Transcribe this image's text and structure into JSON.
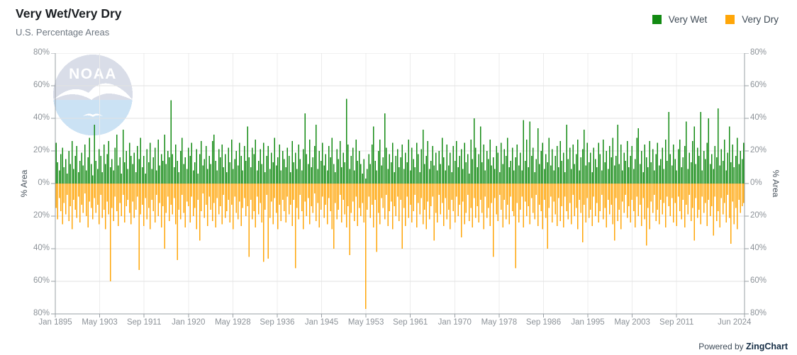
{
  "header": {
    "title": "Very Wet/Very Dry",
    "subtitle": "U.S. Percentage Areas"
  },
  "legend": {
    "items": [
      {
        "label": "Very Wet",
        "color": "#128a12"
      },
      {
        "label": "Very Dry",
        "color": "#ffa608"
      }
    ]
  },
  "watermark": {
    "text": "NOAA"
  },
  "footer": {
    "powered_by": "Powered by ",
    "brand": "ZingChart"
  },
  "chart_data": {
    "type": "bar",
    "title": "Very Wet/Very Dry",
    "subtitle": "U.S. Percentage Areas",
    "ylabel_left": "% Area",
    "ylabel_right": "% Area",
    "ylim": [
      -80,
      80
    ],
    "y_tick_step": 20,
    "y_tick_labels": [
      "80%",
      "60%",
      "40%",
      "20%",
      "0%",
      "20%",
      "40%",
      "60%",
      "80%"
    ],
    "x_tick_labels": [
      "Jan 1895",
      "May 1903",
      "Sep 1911",
      "Jan 1920",
      "May 1928",
      "Sep 1936",
      "Jan 1945",
      "May 1953",
      "Sep 1961",
      "Jan 1970",
      "May 1978",
      "Sep 1986",
      "Jan 1995",
      "May 2003",
      "Sep 2011",
      "Jun 2024"
    ],
    "x_tick_month_index": [
      0,
      100,
      200,
      300,
      400,
      500,
      600,
      700,
      800,
      900,
      1000,
      1100,
      1200,
      1300,
      1400,
      1553
    ],
    "months_total": 1554,
    "grid": true,
    "legend_position": "top-right",
    "axis_color": "#9aa0a6",
    "grid_color": "#e2e2e2",
    "series": [
      {
        "name": "Very Wet",
        "direction": "up",
        "color": "#128a12",
        "values": [
          25,
          13,
          8,
          18,
          22,
          10,
          15,
          6,
          20,
          12,
          26,
          9,
          17,
          23,
          7,
          14,
          19,
          11,
          24,
          8,
          16,
          28,
          12,
          5,
          36,
          14,
          9,
          21,
          17,
          7,
          24,
          12,
          18,
          26,
          10,
          15,
          8,
          22,
          30,
          11,
          16,
          6,
          33,
          13,
          20,
          9,
          25,
          17,
          12,
          19,
          7,
          23,
          15,
          28,
          10,
          17,
          6,
          21,
          13,
          25,
          9,
          16,
          22,
          8,
          27,
          11,
          18,
          14,
          30,
          12,
          20,
          16,
          51,
          18,
          10,
          24,
          14,
          7,
          20,
          28,
          12,
          16,
          9,
          22,
          17,
          25,
          8,
          13,
          21,
          6,
          18,
          26,
          11,
          15,
          23,
          9,
          17,
          12,
          26,
          30,
          14,
          8,
          21,
          16,
          24,
          10,
          18,
          7,
          22,
          13,
          27,
          9,
          15,
          20,
          11,
          25,
          17,
          8,
          23,
          14,
          35,
          16,
          10,
          22,
          18,
          27,
          8,
          14,
          21,
          12,
          25,
          7,
          17,
          23,
          9,
          19,
          13,
          28,
          11,
          16,
          24,
          8,
          20,
          15,
          10,
          22,
          17,
          7,
          26,
          13,
          19,
          9,
          24,
          15,
          8,
          21,
          43,
          18,
          12,
          27,
          10,
          16,
          23,
          36,
          9,
          20,
          14,
          25,
          11,
          18,
          8,
          23,
          16,
          28,
          12,
          7,
          21,
          15,
          26,
          10,
          19,
          13,
          52,
          24,
          9,
          17,
          22,
          8,
          27,
          14,
          20,
          12,
          6,
          15,
          3,
          9,
          18,
          12,
          24,
          35,
          14,
          8,
          20,
          27,
          11,
          16,
          43,
          22,
          9,
          18,
          13,
          25,
          7,
          17,
          21,
          10,
          16,
          24,
          9,
          19,
          13,
          27,
          8,
          22,
          15,
          10,
          25,
          18,
          7,
          21,
          33,
          12,
          17,
          26,
          9,
          14,
          23,
          11,
          19,
          8,
          20,
          12,
          28,
          16,
          8,
          24,
          11,
          19,
          7,
          23,
          14,
          26,
          10,
          17,
          21,
          9,
          25,
          13,
          18,
          6,
          27,
          15,
          40,
          22,
          10,
          18,
          35,
          13,
          24,
          8,
          20,
          15,
          27,
          11,
          16,
          9,
          23,
          19,
          7,
          25,
          12,
          21,
          17,
          28,
          10,
          14,
          22,
          8,
          16,
          24,
          11,
          19,
          8,
          39,
          14,
          27,
          10,
          38,
          17,
          22,
          7,
          15,
          34,
          12,
          20,
          25,
          9,
          18,
          13,
          28,
          11,
          21,
          8,
          17,
          23,
          10,
          26,
          14,
          19,
          7,
          36,
          15,
          22,
          9,
          24,
          12,
          18,
          27,
          8,
          16,
          21,
          33,
          11,
          25,
          13,
          19,
          7,
          22,
          15,
          10,
          25,
          18,
          8,
          27,
          13,
          20,
          9,
          23,
          16,
          28,
          11,
          17,
          36,
          12,
          24,
          8,
          19,
          14,
          26,
          10,
          17,
          23,
          9,
          15,
          28,
          34,
          12,
          20,
          7,
          24,
          16,
          10,
          26,
          13,
          21,
          8,
          18,
          25,
          11,
          15,
          22,
          9,
          27,
          14,
          44,
          18,
          11,
          24,
          15,
          8,
          21,
          27,
          10,
          16,
          23,
          38,
          9,
          19,
          13,
          26,
          35,
          12,
          22,
          17,
          44,
          8,
          20,
          15,
          25,
          40,
          12,
          18,
          9,
          23,
          16,
          46,
          11,
          21,
          14,
          27,
          8,
          19,
          35,
          13,
          24,
          10,
          17,
          28,
          12,
          20,
          15,
          25
        ]
      },
      {
        "name": "Very Dry",
        "direction": "down",
        "color": "#ffa608",
        "values": [
          15,
          22,
          9,
          17,
          25,
          12,
          19,
          7,
          23,
          14,
          28,
          10,
          16,
          21,
          8,
          24,
          13,
          18,
          6,
          20,
          27,
          11,
          15,
          22,
          9,
          18,
          13,
          25,
          7,
          21,
          16,
          28,
          11,
          19,
          60,
          15,
          23,
          8,
          17,
          26,
          12,
          20,
          7,
          24,
          14,
          10,
          18,
          25,
          11,
          21,
          16,
          8,
          53,
          19,
          13,
          26,
          9,
          22,
          15,
          28,
          10,
          17,
          24,
          7,
          20,
          12,
          27,
          14,
          40,
          18,
          8,
          23,
          13,
          19,
          9,
          25,
          47,
          16,
          22,
          7,
          18,
          27,
          11,
          14,
          24,
          8,
          20,
          15,
          28,
          10,
          35,
          17,
          6,
          21,
          13,
          26,
          8,
          16,
          23,
          12,
          27,
          9,
          19,
          14,
          25,
          7,
          21,
          17,
          10,
          24,
          13,
          28,
          8,
          18,
          22,
          11,
          26,
          15,
          9,
          20,
          14,
          45,
          10,
          22,
          17,
          27,
          8,
          19,
          12,
          24,
          48,
          16,
          7,
          46,
          21,
          11,
          25,
          9,
          18,
          28,
          13,
          23,
          10,
          17,
          24,
          8,
          19,
          13,
          26,
          10,
          52,
          15,
          22,
          7,
          17,
          28,
          11,
          20,
          9,
          25,
          14,
          18,
          6,
          23,
          12,
          27,
          16,
          8,
          21,
          13,
          25,
          9,
          17,
          28,
          40,
          12,
          22,
          16,
          7,
          24,
          10,
          19,
          27,
          14,
          44,
          18,
          11,
          23,
          8,
          26,
          15,
          20,
          12,
          24,
          77,
          16,
          8,
          21,
          13,
          27,
          10,
          42,
          18,
          25,
          9,
          15,
          22,
          7,
          26,
          17,
          11,
          28,
          14,
          20,
          8,
          23,
          10,
          40,
          15,
          26,
          8,
          21,
          13,
          24,
          17,
          7,
          27,
          12,
          19,
          9,
          25,
          16,
          28,
          11,
          22,
          14,
          8,
          35,
          18,
          24,
          7,
          19,
          12,
          26,
          9,
          22,
          16,
          28,
          10,
          17,
          24,
          8,
          20,
          13,
          33,
          11,
          25,
          18,
          7,
          23,
          15,
          27,
          9,
          21,
          14,
          24,
          10,
          18,
          28,
          8,
          21,
          15,
          26,
          12,
          45,
          9,
          19,
          23,
          7,
          16,
          27,
          10,
          22,
          13,
          25,
          8,
          17,
          20,
          52,
          12,
          24,
          16,
          8,
          27,
          11,
          20,
          14,
          25,
          9,
          18,
          22,
          7,
          26,
          13,
          17,
          28,
          10,
          21,
          40,
          15,
          8,
          24,
          11,
          19,
          26,
          9,
          23,
          14,
          27,
          8,
          17,
          22,
          12,
          25,
          7,
          20,
          15,
          28,
          10,
          18,
          36,
          13,
          24,
          9,
          21,
          16,
          26,
          8,
          20,
          12,
          24,
          17,
          7,
          22,
          15,
          27,
          10,
          19,
          13,
          25,
          35,
          9,
          23,
          16,
          28,
          11,
          18,
          7,
          21,
          14,
          24,
          10,
          17,
          27,
          8,
          20,
          13,
          26,
          9,
          22,
          38,
          15,
          28,
          11,
          18,
          7,
          23,
          16,
          25,
          10,
          19,
          12,
          27,
          8,
          14,
          20,
          9,
          24,
          12,
          26,
          8,
          17,
          22,
          10,
          27,
          13,
          19,
          7,
          23,
          15,
          35,
          9,
          21,
          16,
          25,
          8,
          18,
          12,
          26,
          10,
          20,
          14,
          32,
          8,
          23,
          17,
          27,
          9,
          19,
          12,
          24,
          7,
          21,
          37,
          11,
          25,
          15,
          28,
          10,
          18,
          14,
          12
        ]
      }
    ]
  }
}
